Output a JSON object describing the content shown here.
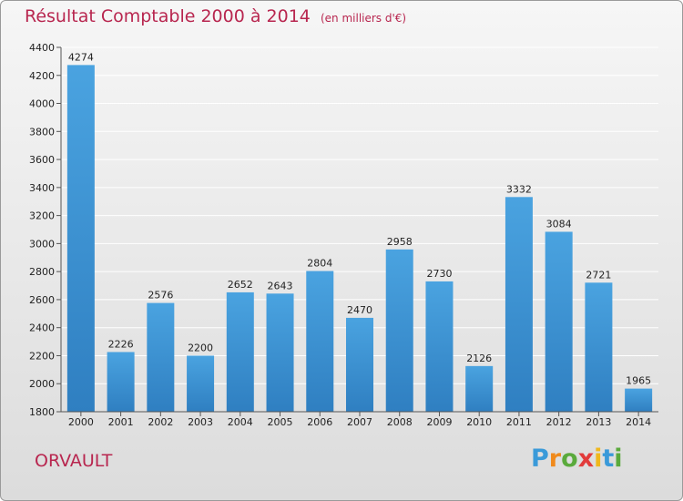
{
  "title": "Résultat Comptable 2000 à 2014",
  "subtitle": "(en milliers d'€)",
  "commune": "ORVAULT",
  "logo": {
    "letters": [
      "P",
      "r",
      "o",
      "x",
      "i",
      "t",
      "i"
    ],
    "colors": [
      "#3a9ad9",
      "#f08a1c",
      "#5aaa3c",
      "#e23b3b",
      "#f0b81c",
      "#3a9ad9",
      "#5aaa3c"
    ]
  },
  "colors": {
    "bar": "#4aa3e0",
    "bar_dark": "#2f7fc1",
    "grid": "#ffffff",
    "title": "#b8264f",
    "text": "#222222"
  },
  "chart_data": {
    "type": "bar",
    "title": "Résultat Comptable 2000 à 2014",
    "subtitle": "(en milliers d'€)",
    "categories": [
      "2000",
      "2001",
      "2002",
      "2003",
      "2004",
      "2005",
      "2006",
      "2007",
      "2008",
      "2009",
      "2010",
      "2011",
      "2012",
      "2013",
      "2014"
    ],
    "values": [
      4274,
      2226,
      2576,
      2200,
      2652,
      2643,
      2804,
      2470,
      2958,
      2730,
      2126,
      3332,
      3084,
      2721,
      1965
    ],
    "ylim": [
      1800,
      4400
    ],
    "yticks": [
      1800,
      2000,
      2200,
      2400,
      2600,
      2800,
      3000,
      3200,
      3400,
      3600,
      3800,
      4000,
      4200,
      4400
    ],
    "grid": true,
    "xlabel": "",
    "ylabel": ""
  }
}
